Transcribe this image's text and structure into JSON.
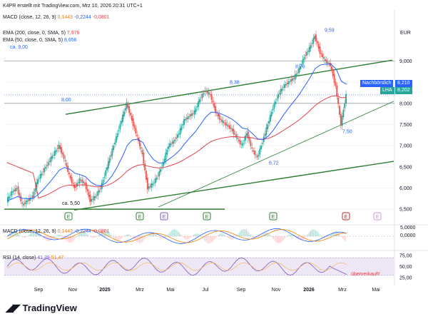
{
  "header": {
    "title": "K4PR erstellt mit TradingView.com, Mrz 10, 2026 20:31 UTC+1",
    "currency": "EUR"
  },
  "legend": {
    "macd_top": {
      "label": "MACD (close, 12, 26, 9)",
      "v1": "0,1443",
      "v2": "-0,2244",
      "v3": "-0,0801"
    },
    "ema200": {
      "label": "EMA (200, close, 0, SMA, 5)",
      "value": "7,976"
    },
    "ema50": {
      "label": "EMA (50, close, 0, SMA, 5)",
      "value": "8,656"
    },
    "ca9": "ca. 9,00"
  },
  "price_boxes": {
    "nachboerslich": {
      "label": "Nachbörslich",
      "value": "8,210"
    },
    "lha": {
      "label": "LHA",
      "value": "8,202"
    }
  },
  "macd_pane": {
    "label": "MACD (close, 12, 26, 9)",
    "v1": "0,1443",
    "v2": "-0,2244",
    "v3": "-0,0801",
    "axis": "0,0000",
    "top_tick": "5,0000"
  },
  "rsi_pane": {
    "label": "RSI (14, close)",
    "v1": "41,39",
    "v2": "51,47",
    "note": "überverkauft!"
  },
  "footer": {
    "logo": "TradingView"
  },
  "colors": {
    "candle_up": "#26a69a",
    "candle_down": "#ef5350",
    "ema200": "#e2454e",
    "ema50": "#2962ff",
    "trend": "#2e7d32",
    "rsi": "#7e57c2",
    "macd_hist_up": "#26a69a"
  },
  "chart_data": {
    "type": "candlestick",
    "symbol": "K4PR",
    "currency": "EUR",
    "x_ticks": [
      "Sep",
      "Nov",
      "2025",
      "Mrz",
      "Mai",
      "Jul",
      "Sep",
      "Nov",
      "2026",
      "Mrz",
      "Mai"
    ],
    "y_ticks": [
      "9,000",
      "8,500",
      "8,000",
      "7,500",
      "7,000",
      "6,500",
      "6,000",
      "5,500"
    ],
    "ylim": [
      5.3,
      9.8
    ],
    "annotations": [
      "8,00",
      "ca. 5,50",
      "8,38",
      "8,76",
      "9,59",
      "6,72",
      "7,50"
    ],
    "annotation_values": [
      8.0,
      5.5,
      8.38,
      8.76,
      9.59,
      6.72,
      7.5
    ],
    "horizontal_levels": [
      9.0,
      8.0,
      5.5
    ],
    "series": [
      {
        "name": "EMA (200, close, 0, SMA, 5)",
        "last": 7.976
      },
      {
        "name": "EMA (50, close, 0, SMA, 5)",
        "last": 8.656
      }
    ],
    "last_price": 8.202,
    "after_hours_price": 8.21,
    "close_path": [
      5.7,
      5.9,
      6.0,
      5.6,
      5.7,
      5.8,
      6.2,
      6.4,
      6.6,
      6.8,
      7.0,
      6.7,
      6.3,
      6.0,
      6.2,
      6.1,
      5.7,
      5.8,
      6.0,
      6.4,
      6.8,
      7.2,
      7.6,
      8.0,
      7.6,
      7.2,
      6.8,
      6.0,
      6.1,
      6.3,
      6.6,
      7.0,
      7.1,
      7.3,
      7.6,
      7.7,
      7.8,
      8.1,
      8.3,
      8.2,
      7.8,
      7.6,
      7.5,
      7.4,
      7.2,
      7.0,
      7.3,
      6.9,
      6.72,
      7.1,
      7.5,
      7.9,
      8.2,
      8.4,
      8.5,
      8.6,
      8.8,
      9.1,
      9.3,
      9.59,
      9.2,
      9.0,
      8.9,
      8.4,
      7.5,
      8.2
    ],
    "macd_axis_ticks": [
      "5,0000",
      "0,0000"
    ],
    "rsi_axis_ticks": [
      "75,00",
      "50,00",
      "25,00"
    ],
    "rsi_last": 41.39,
    "rsi_levels": [
      70,
      30
    ]
  }
}
